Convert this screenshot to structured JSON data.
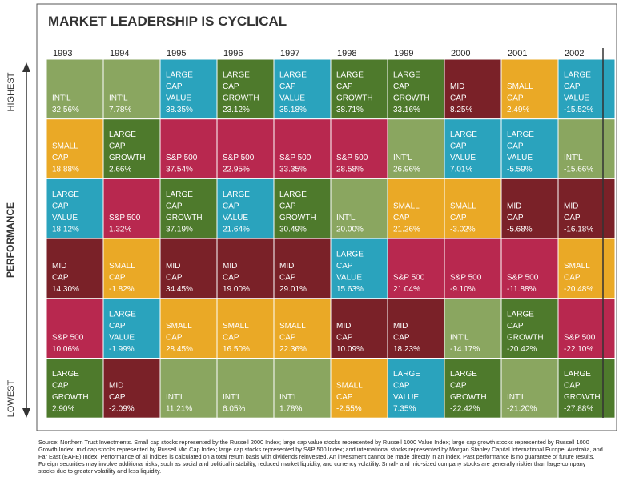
{
  "title": "MARKET LEADERSHIP IS CYCLICAL",
  "axis": {
    "top": "HIGHEST",
    "middle": "PERFORMANCE",
    "bottom": "LOWEST"
  },
  "table": {
    "columns": [
      {
        "year": "1993",
        "cells": [
          {
            "label": [
              "INT'L"
            ],
            "value": "32.56%",
            "color": "#8aa660"
          },
          {
            "label": [
              "SMALL",
              "CAP"
            ],
            "value": "18.88%",
            "color": "#eaa926"
          },
          {
            "label": [
              "LARGE",
              "CAP",
              "VALUE"
            ],
            "value": "18.12%",
            "color": "#2aa3bd"
          },
          {
            "label": [
              "MID",
              "CAP"
            ],
            "value": "14.30%",
            "color": "#7a2128"
          },
          {
            "label": [
              "S&P 500"
            ],
            "value": "10.06%",
            "color": "#b8284f"
          },
          {
            "label": [
              "LARGE",
              "CAP",
              "GROWTH"
            ],
            "value": "2.90%",
            "color": "#4e7a2c"
          }
        ]
      },
      {
        "year": "1994",
        "cells": [
          {
            "label": [
              "INT'L"
            ],
            "value": "7.78%",
            "color": "#8aa660"
          },
          {
            "label": [
              "LARGE",
              "CAP",
              "GROWTH"
            ],
            "value": "2.66%",
            "color": "#4e7a2c"
          },
          {
            "label": [
              "S&P 500"
            ],
            "value": "1.32%",
            "color": "#b8284f"
          },
          {
            "label": [
              "SMALL",
              "CAP"
            ],
            "value": "-1.82%",
            "color": "#eaa926"
          },
          {
            "label": [
              "LARGE",
              "CAP",
              "VALUE"
            ],
            "value": "-1.99%",
            "color": "#2aa3bd"
          },
          {
            "label": [
              "MID",
              "CAP"
            ],
            "value": "-2.09%",
            "color": "#7a2128"
          }
        ]
      },
      {
        "year": "1995",
        "cells": [
          {
            "label": [
              "LARGE",
              "CAP",
              "VALUE"
            ],
            "value": "38.35%",
            "color": "#2aa3bd"
          },
          {
            "label": [
              "S&P 500"
            ],
            "value": "37.54%",
            "color": "#b8284f"
          },
          {
            "label": [
              "LARGE",
              "CAP",
              "GROWTH"
            ],
            "value": "37.19%",
            "color": "#4e7a2c"
          },
          {
            "label": [
              "MID",
              "CAP"
            ],
            "value": "34.45%",
            "color": "#7a2128"
          },
          {
            "label": [
              "SMALL",
              "CAP"
            ],
            "value": "28.45%",
            "color": "#eaa926"
          },
          {
            "label": [
              "INT'L"
            ],
            "value": "11.21%",
            "color": "#8aa660"
          }
        ]
      },
      {
        "year": "1996",
        "cells": [
          {
            "label": [
              "LARGE",
              "CAP",
              "GROWTH"
            ],
            "value": "23.12%",
            "color": "#4e7a2c"
          },
          {
            "label": [
              "S&P 500"
            ],
            "value": "22.95%",
            "color": "#b8284f"
          },
          {
            "label": [
              "LARGE",
              "CAP",
              "VALUE"
            ],
            "value": "21.64%",
            "color": "#2aa3bd"
          },
          {
            "label": [
              "MID",
              "CAP"
            ],
            "value": "19.00%",
            "color": "#7a2128"
          },
          {
            "label": [
              "SMALL",
              "CAP"
            ],
            "value": "16.50%",
            "color": "#eaa926"
          },
          {
            "label": [
              "INT'L"
            ],
            "value": "6.05%",
            "color": "#8aa660"
          }
        ]
      },
      {
        "year": "1997",
        "cells": [
          {
            "label": [
              "LARGE",
              "CAP",
              "VALUE"
            ],
            "value": "35.18%",
            "color": "#2aa3bd"
          },
          {
            "label": [
              "S&P 500"
            ],
            "value": "33.35%",
            "color": "#b8284f"
          },
          {
            "label": [
              "LARGE",
              "CAP",
              "GROWTH"
            ],
            "value": "30.49%",
            "color": "#4e7a2c"
          },
          {
            "label": [
              "MID",
              "CAP"
            ],
            "value": "29.01%",
            "color": "#7a2128"
          },
          {
            "label": [
              "SMALL",
              "CAP"
            ],
            "value": "22.36%",
            "color": "#eaa926"
          },
          {
            "label": [
              "INT'L"
            ],
            "value": "1.78%",
            "color": "#8aa660"
          }
        ]
      },
      {
        "year": "1998",
        "cells": [
          {
            "label": [
              "LARGE",
              "CAP",
              "GROWTH"
            ],
            "value": "38.71%",
            "color": "#4e7a2c"
          },
          {
            "label": [
              "S&P 500"
            ],
            "value": "28.58%",
            "color": "#b8284f"
          },
          {
            "label": [
              "INT'L"
            ],
            "value": "20.00%",
            "color": "#8aa660"
          },
          {
            "label": [
              "LARGE",
              "CAP",
              "VALUE"
            ],
            "value": "15.63%",
            "color": "#2aa3bd"
          },
          {
            "label": [
              "MID",
              "CAP"
            ],
            "value": "10.09%",
            "color": "#7a2128"
          },
          {
            "label": [
              "SMALL",
              "CAP"
            ],
            "value": "-2.55%",
            "color": "#eaa926"
          }
        ]
      },
      {
        "year": "1999",
        "cells": [
          {
            "label": [
              "LARGE",
              "CAP",
              "GROWTH"
            ],
            "value": "33.16%",
            "color": "#4e7a2c"
          },
          {
            "label": [
              "INT'L"
            ],
            "value": "26.96%",
            "color": "#8aa660"
          },
          {
            "label": [
              "SMALL",
              "CAP"
            ],
            "value": "21.26%",
            "color": "#eaa926"
          },
          {
            "label": [
              "S&P 500"
            ],
            "value": "21.04%",
            "color": "#b8284f"
          },
          {
            "label": [
              "MID",
              "CAP"
            ],
            "value": "18.23%",
            "color": "#7a2128"
          },
          {
            "label": [
              "LARGE",
              "CAP",
              "VALUE"
            ],
            "value": "7.35%",
            "color": "#2aa3bd"
          }
        ]
      },
      {
        "year": "2000",
        "cells": [
          {
            "label": [
              "MID",
              "CAP"
            ],
            "value": "8.25%",
            "color": "#7a2128"
          },
          {
            "label": [
              "LARGE",
              "CAP",
              "VALUE"
            ],
            "value": "7.01%",
            "color": "#2aa3bd"
          },
          {
            "label": [
              "SMALL",
              "CAP"
            ],
            "value": "-3.02%",
            "color": "#eaa926"
          },
          {
            "label": [
              "S&P 500"
            ],
            "value": "-9.10%",
            "color": "#b8284f"
          },
          {
            "label": [
              "INT'L"
            ],
            "value": "-14.17%",
            "color": "#8aa660"
          },
          {
            "label": [
              "LARGE",
              "CAP",
              "GROWTH"
            ],
            "value": "-22.42%",
            "color": "#4e7a2c"
          }
        ]
      },
      {
        "year": "2001",
        "cells": [
          {
            "label": [
              "SMALL",
              "CAP"
            ],
            "value": "2.49%",
            "color": "#eaa926"
          },
          {
            "label": [
              "LARGE",
              "CAP",
              "VALUE"
            ],
            "value": "-5.59%",
            "color": "#2aa3bd"
          },
          {
            "label": [
              "MID",
              "CAP"
            ],
            "value": "-5.68%",
            "color": "#7a2128"
          },
          {
            "label": [
              "S&P 500"
            ],
            "value": "-11.88%",
            "color": "#b8284f"
          },
          {
            "label": [
              "LARGE",
              "CAP",
              "GROWTH"
            ],
            "value": "-20.42%",
            "color": "#4e7a2c"
          },
          {
            "label": [
              "INT'L"
            ],
            "value": "-21.20%",
            "color": "#8aa660"
          }
        ]
      },
      {
        "year": "2002",
        "cells": [
          {
            "label": [
              "LARGE",
              "CAP",
              "VALUE"
            ],
            "value": "-15.52%",
            "color": "#2aa3bd"
          },
          {
            "label": [
              "INT'L"
            ],
            "value": "-15.66%",
            "color": "#8aa660"
          },
          {
            "label": [
              "MID",
              "CAP"
            ],
            "value": "-16.18%",
            "color": "#7a2128"
          },
          {
            "label": [
              "SMALL",
              "CAP"
            ],
            "value": "-20.48%",
            "color": "#eaa926"
          },
          {
            "label": [
              "S&P 500"
            ],
            "value": "-22.10%",
            "color": "#b8284f"
          },
          {
            "label": [
              "LARGE",
              "CAP",
              "GROWTH"
            ],
            "value": "-27.88%",
            "color": "#4e7a2c"
          }
        ]
      }
    ]
  },
  "footnote": "Source: Northern Trust Investments. Small cap stocks represented by the Russell 2000 Index; large cap value stocks represented by Russell 1000 Value Index; large cap growth stocks represented by Russell 1000 Growth Index; mid cap stocks represented by Russell Mid Cap Index; large cap stocks represented by S&P 500 Index; and international stocks represented by Morgan Stanley Capital International Europe, Australia, and Far East (EAFE) Index. Performance of all indices is calculated on a total return basis with dividends reinvested. An investment cannot be made directly in an index. Past performance is no guarantee of future results. Foreign securities may involve additional risks, such as social and political instability, reduced market liquidity, and currency volatility. Small- and mid-sized company stocks are generally riskier than large-company stocks due to greater volatility and less liquidity."
}
